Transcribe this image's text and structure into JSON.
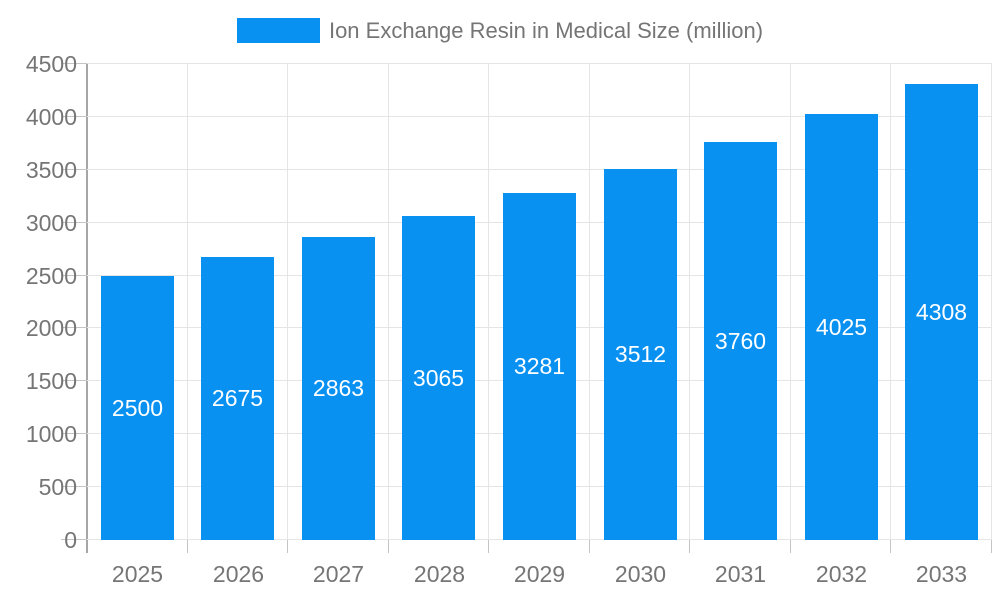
{
  "chart_data": {
    "type": "bar",
    "title": "Ion Exchange Resin in Medical Size (million)",
    "series_name": "Ion Exchange Resin in Medical Size (million)",
    "categories": [
      "2025",
      "2026",
      "2027",
      "2028",
      "2029",
      "2030",
      "2031",
      "2032",
      "2033"
    ],
    "values": [
      2500,
      2675,
      2863,
      3065,
      3281,
      3512,
      3760,
      4025,
      4308
    ],
    "xlabel": "",
    "ylabel": "",
    "ylim": [
      0,
      4500
    ],
    "ytick_step": 500,
    "ytick_labels": [
      "0",
      "500",
      "1000",
      "1500",
      "2000",
      "2500",
      "3000",
      "3500",
      "4000",
      "4500"
    ],
    "grid": true,
    "legend_position": "top-center",
    "value_labels": "inside-center"
  },
  "colors": {
    "bar": "#0991f2",
    "bar_label": "#ffffff",
    "axis_text": "#757575",
    "legend_text": "#757575",
    "axis_line": "#a6a6a6",
    "grid_line": "#e5e5e5",
    "tick": "#c4c4c4",
    "background": "#ffffff"
  }
}
